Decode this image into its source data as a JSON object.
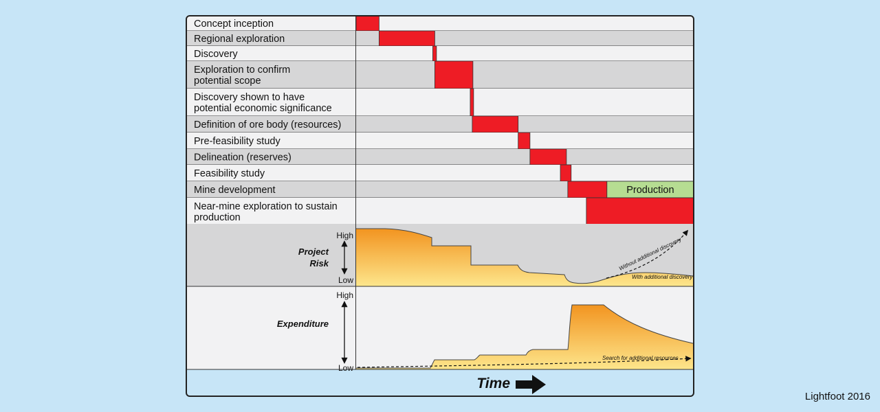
{
  "stages": [
    {
      "label": [
        "Concept inception"
      ],
      "start": 0.0,
      "end": 6.8
    },
    {
      "label": [
        "Regional exploration"
      ],
      "start": 6.8,
      "end": 23.3
    },
    {
      "label": [
        "Discovery"
      ],
      "start": 22.7,
      "end": 23.8
    },
    {
      "label": [
        "Exploration to confirm",
        "potential scope"
      ],
      "start": 23.3,
      "end": 34.6
    },
    {
      "label": [
        "Discovery shown to have",
        "potential economic significance"
      ],
      "start": 33.8,
      "end": 34.8
    },
    {
      "label": [
        "Definition of ore body (resources)"
      ],
      "start": 34.4,
      "end": 48.0
    },
    {
      "label": [
        "Pre-feasibility study"
      ],
      "start": 48.0,
      "end": 51.5
    },
    {
      "label": [
        "Delineation (reserves)"
      ],
      "start": 51.5,
      "end": 62.3
    },
    {
      "label": [
        "Feasibility study"
      ],
      "start": 60.5,
      "end": 63.7
    },
    {
      "label": [
        "Mine development"
      ],
      "start": 62.7,
      "end": 74.3,
      "after_label": "Production"
    },
    {
      "label": [
        "Near-mine exploration to sustain",
        "production"
      ],
      "start": 68.2,
      "end": 100.0
    }
  ],
  "risk": {
    "title": [
      "Project",
      "Risk"
    ],
    "high": "High",
    "low": "Low",
    "without_note": "Without additional discovery",
    "with_note": "With additional discovery"
  },
  "expenditure": {
    "title": "Expenditure",
    "high": "High",
    "low": "Low",
    "search_note": "Search for additional resources"
  },
  "time_label": "Time",
  "credit": "Lightfoot 2016",
  "colors": {
    "bar": "#ee1c25",
    "production": "#b6dd92",
    "row_gray": "#d6d6d7",
    "row_white": "#f2f2f3",
    "curve_dark": "#f29420",
    "curve_light": "#fde68c"
  }
}
